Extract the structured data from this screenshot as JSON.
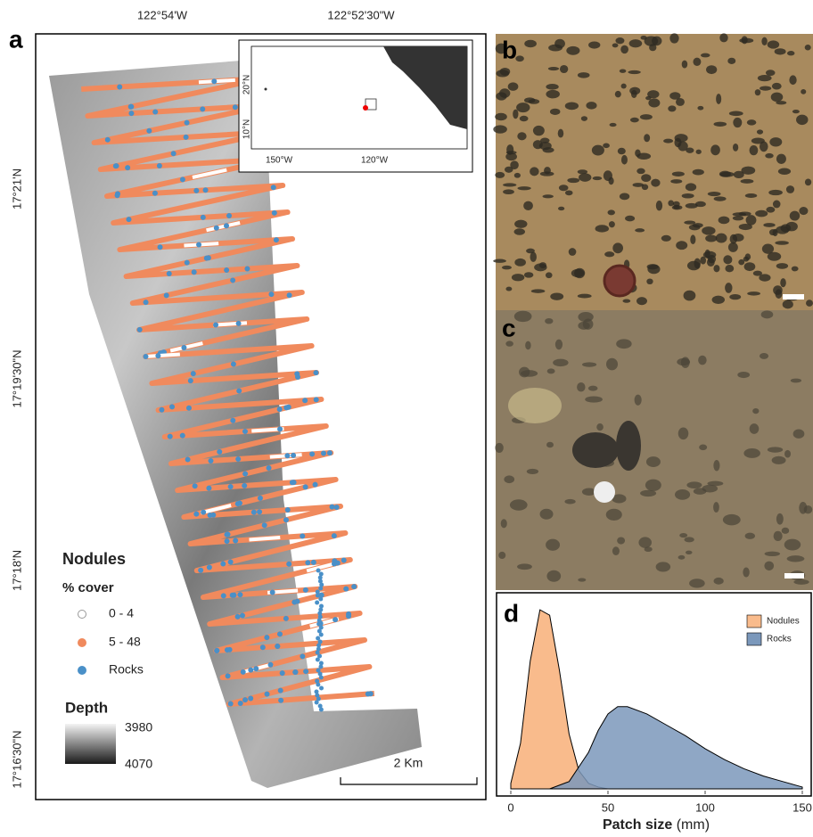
{
  "figure": {
    "panel_a": {
      "letter": "a",
      "top_labels": [
        "122°54'W",
        "122°52'30\"W"
      ],
      "left_labels": [
        "17°21'N",
        "17°19'30\"N",
        "17°18'N",
        "17°16'30\"N"
      ],
      "inset": {
        "lat_labels": [
          "20°N",
          "10°N"
        ],
        "lon_labels": [
          "150°W",
          "120°W"
        ]
      },
      "legend": {
        "title": "Nodules",
        "subtitle": "% cover",
        "items": [
          "0 - 4",
          "5 - 48",
          "Rocks"
        ]
      },
      "depth": {
        "title": "Depth",
        "labels": [
          "3980",
          "4070"
        ]
      },
      "scale_bar": "2 Km"
    },
    "panel_b": {
      "letter": "b"
    },
    "panel_c": {
      "letter": "c"
    }
  },
  "chart_data": {
    "type": "area",
    "letter": "d",
    "xlabel": "Patch size",
    "xlabel_unit": "(mm)",
    "xlim": [
      0,
      150
    ],
    "xticks": [
      0,
      50,
      100,
      150
    ],
    "ylim": [
      0,
      1
    ],
    "legend": "top-right",
    "series": [
      {
        "name": "Nodules",
        "color": "#f9bb8c",
        "x": [
          0,
          5,
          10,
          15,
          20,
          25,
          30,
          35,
          40,
          45,
          50,
          60
        ],
        "values": [
          0.03,
          0.25,
          0.7,
          0.98,
          0.95,
          0.65,
          0.3,
          0.1,
          0.03,
          0.01,
          0,
          0
        ]
      },
      {
        "name": "Rocks",
        "color": "#7b98bb",
        "x": [
          20,
          30,
          40,
          45,
          50,
          55,
          60,
          70,
          80,
          90,
          100,
          110,
          120,
          130,
          140,
          150
        ],
        "values": [
          0,
          0.04,
          0.2,
          0.32,
          0.41,
          0.45,
          0.45,
          0.41,
          0.35,
          0.29,
          0.22,
          0.16,
          0.11,
          0.07,
          0.04,
          0.01
        ]
      }
    ]
  }
}
